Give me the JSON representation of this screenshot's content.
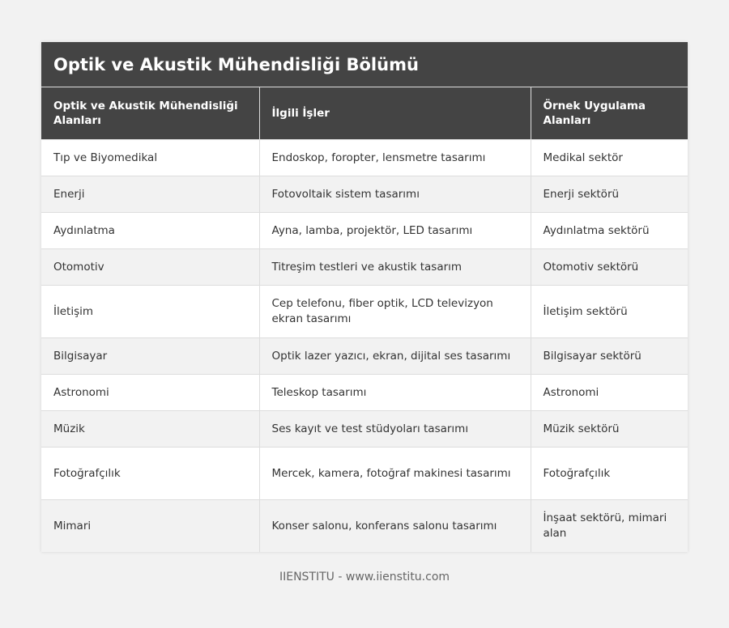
{
  "title": "Optik ve Akustik Mühendisliği Bölümü",
  "columns": [
    "Optik ve Akustik Mühendisliği Alanları",
    "İlgili İşler",
    "Örnek Uygulama Alanları"
  ],
  "rows": [
    [
      "Tıp ve Biyomedikal",
      "Endoskop, foropter, lensmetre tasarımı",
      "Medikal sektör"
    ],
    [
      "Enerji",
      "Fotovoltaik sistem tasarımı",
      "Enerji sektörü"
    ],
    [
      "Aydınlatma",
      "Ayna, lamba, projektör, LED tasarımı",
      "Aydınlatma sektörü"
    ],
    [
      "Otomotiv",
      "Titreşim testleri ve akustik tasarım",
      "Otomotiv sektörü"
    ],
    [
      "İletişim",
      "Cep telefonu, fiber optik, LCD televizyon ekran tasarımı",
      "İletişim sektörü"
    ],
    [
      "Bilgisayar",
      "Optik lazer yazıcı, ekran, dijital ses tasarımı",
      "Bilgisayar sektörü"
    ],
    [
      "Astronomi",
      "Teleskop tasarımı",
      "Astronomi"
    ],
    [
      "Müzik",
      "Ses kayıt ve test stüdyoları tasarımı",
      "Müzik sektörü"
    ],
    [
      "Fotoğrafçılık",
      "Mercek, kamera, fotoğraf makinesi tasarımı",
      "Fotoğrafçılık"
    ],
    [
      "Mimari",
      "Konser salonu, konferans salonu tasarımı",
      "İnşaat sektörü, mimari alan"
    ]
  ],
  "footer": "IIENSTITU - www.iienstitu.com"
}
